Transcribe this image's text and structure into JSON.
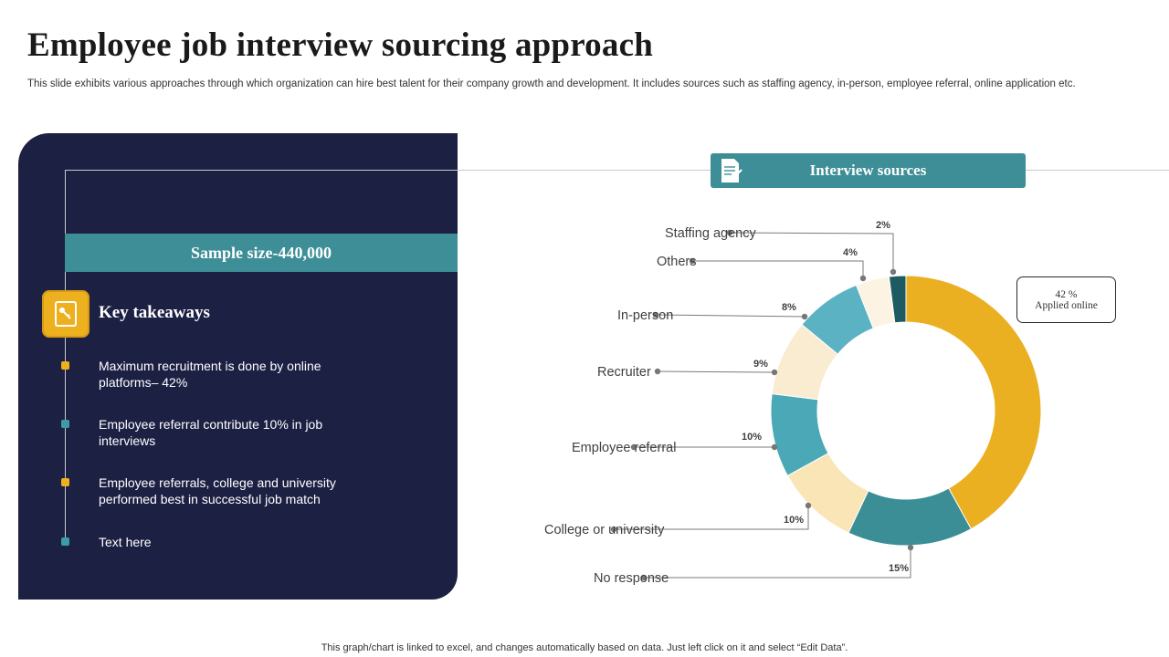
{
  "header": {
    "title": "Employee job interview sourcing approach",
    "subtitle": "This slide exhibits various approaches through which organization can hire best talent for their company growth and development. It includes sources such as staffing agency, in-person, employee referral, online application etc."
  },
  "left_panel": {
    "sample_size": "Sample size-440,000",
    "key_takeaways_title": "Key takeaways",
    "bullets": [
      {
        "text": "Maximum recruitment is done by online platforms– 42%",
        "color": "#edb01f"
      },
      {
        "text": "Employee referral contribute 10% in job interviews",
        "color": "#3d9ba5"
      },
      {
        "text": "Employee referrals, college and university performed best in successful job match",
        "color": "#edb01f"
      },
      {
        "text": "Text here",
        "color": "#3d9ba5"
      }
    ]
  },
  "interview_sources": {
    "header": "Interview sources",
    "callout_value": "42 %",
    "callout_label": "Applied online"
  },
  "chart_data": {
    "type": "pie",
    "variant": "donut",
    "start": "top, clockwise",
    "slices": [
      {
        "label": "Applied online",
        "value": 42,
        "value_label": "42 %",
        "color": "#ebb022"
      },
      {
        "label": "No response",
        "value": 15,
        "value_label": "15%",
        "color": "#3b8e96"
      },
      {
        "label": "College or university",
        "value": 10,
        "value_label": "10%",
        "color": "#f9e5b6"
      },
      {
        "label": "Employee referral",
        "value": 10,
        "value_label": "10%",
        "color": "#4aa8b7"
      },
      {
        "label": "Recruiter",
        "value": 9,
        "value_label": "9%",
        "color": "#faecd1"
      },
      {
        "label": "In-person",
        "value": 8,
        "value_label": "8%",
        "color": "#5bb2c2"
      },
      {
        "label": "Others",
        "value": 4,
        "value_label": "4%",
        "color": "#fcf3e3"
      },
      {
        "label": "Staffing agency",
        "value": 2,
        "value_label": "2%",
        "color": "#1e5a62"
      }
    ]
  },
  "footer": "This graph/chart is linked to excel, and changes automatically based on data. Just left click on it and select “Edit Data”."
}
